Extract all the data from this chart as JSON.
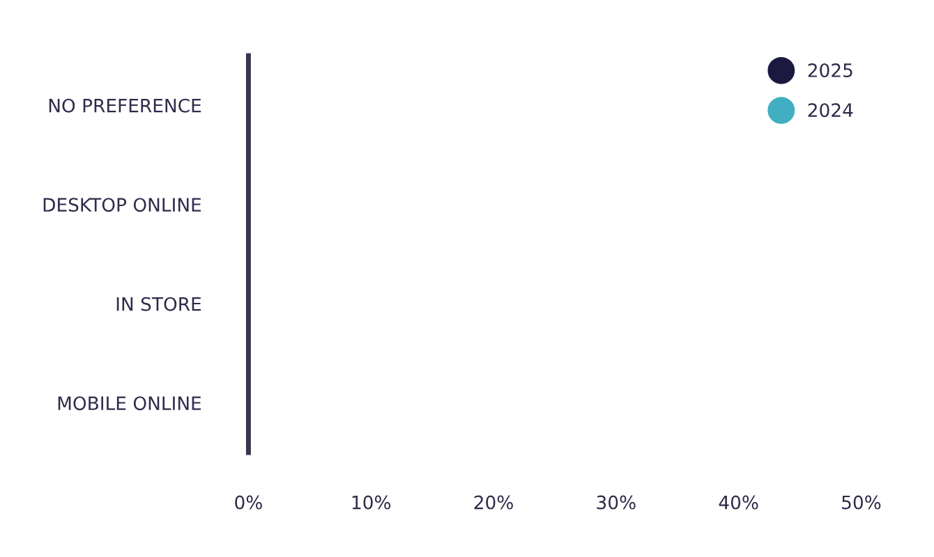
{
  "chart_data": {
    "type": "bar",
    "orientation": "horizontal",
    "categories": [
      "NO PREFERENCE",
      "DESKTOP ONLINE",
      "IN STORE",
      "MOBILE ONLINE"
    ],
    "series": [
      {
        "name": "2025",
        "color": "#1c1940",
        "values": [
          null,
          null,
          null,
          null
        ]
      },
      {
        "name": "2024",
        "color": "#41afc1",
        "values": [
          null,
          null,
          null,
          null
        ]
      }
    ],
    "xlim": [
      0,
      50
    ],
    "xticks": [
      {
        "value": 0,
        "label": "0%"
      },
      {
        "value": 10,
        "label": "10%"
      },
      {
        "value": 20,
        "label": "20%"
      },
      {
        "value": 30,
        "label": "30%"
      },
      {
        "value": 40,
        "label": "40%"
      },
      {
        "value": 50,
        "label": "50%"
      }
    ],
    "grid": false,
    "legend": "top right"
  }
}
